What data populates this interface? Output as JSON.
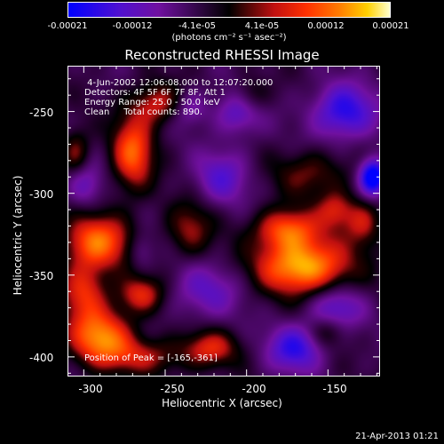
{
  "chart_data": {
    "type": "heatmap",
    "title": "Reconstructed RHESSI Image",
    "xlabel": "Heliocentric X (arcsec)",
    "ylabel": "Heliocentric Y (arcsec)",
    "xlim": [
      -310,
      -118
    ],
    "ylim": [
      -412,
      -222
    ],
    "x_ticks": [
      "-300",
      "-250",
      "-200",
      "-150"
    ],
    "y_ticks": [
      "-250",
      "-300",
      "-350",
      "-400"
    ],
    "colorbar": {
      "range": [
        -0.00021,
        0.00021
      ],
      "ticks": [
        "-0.00021",
        "-0.00012",
        "-4.1e-05",
        "4.1e-05",
        "0.00012",
        "0.00021"
      ],
      "unit_label": "(photons cm⁻² s⁻¹ asec⁻²)"
    },
    "peak_position": [
      -165,
      -361
    ],
    "blobs": [
      {
        "x": -165,
        "y": -345,
        "sx": 20,
        "sy": 12,
        "a": 0.000215
      },
      {
        "x": -175,
        "y": -322,
        "sx": 14,
        "sy": 9,
        "a": 0.00015
      },
      {
        "x": -160,
        "y": -288,
        "sx": 16,
        "sy": 10,
        "a": 8e-05
      },
      {
        "x": -145,
        "y": -310,
        "sx": 8,
        "sy": 8,
        "a": 0.0001
      },
      {
        "x": -128,
        "y": -318,
        "sx": 8,
        "sy": 10,
        "a": 0.0001
      },
      {
        "x": -270,
        "y": -275,
        "sx": 9,
        "sy": 16,
        "a": 0.00016
      },
      {
        "x": -255,
        "y": -245,
        "sx": 11,
        "sy": 9,
        "a": 0.00011
      },
      {
        "x": -292,
        "y": -330,
        "sx": 15,
        "sy": 12,
        "a": 0.00017
      },
      {
        "x": -300,
        "y": -360,
        "sx": 10,
        "sy": 12,
        "a": 0.00012
      },
      {
        "x": -290,
        "y": -388,
        "sx": 14,
        "sy": 12,
        "a": 0.00018
      },
      {
        "x": -265,
        "y": -362,
        "sx": 10,
        "sy": 8,
        "a": 0.00012
      },
      {
        "x": -222,
        "y": -395,
        "sx": 12,
        "sy": 8,
        "a": 0.00011
      },
      {
        "x": -262,
        "y": -400,
        "sx": 18,
        "sy": 8,
        "a": 9e-05
      },
      {
        "x": -198,
        "y": -240,
        "sx": 8,
        "sy": 8,
        "a": 7e-05
      },
      {
        "x": -235,
        "y": -322,
        "sx": 10,
        "sy": 12,
        "a": 9e-05
      },
      {
        "x": -305,
        "y": -275,
        "sx": 6,
        "sy": 10,
        "a": 9e-05
      },
      {
        "x": -150,
        "y": -385,
        "sx": 8,
        "sy": 7,
        "a": 6e-05
      },
      {
        "x": -215,
        "y": -290,
        "sx": 12,
        "sy": 12,
        "a": -9e-05
      },
      {
        "x": -140,
        "y": -250,
        "sx": 14,
        "sy": 12,
        "a": -0.00014
      },
      {
        "x": -122,
        "y": -290,
        "sx": 6,
        "sy": 8,
        "a": -0.00021
      },
      {
        "x": -170,
        "y": -395,
        "sx": 12,
        "sy": 10,
        "a": -0.00013
      },
      {
        "x": -145,
        "y": -370,
        "sx": 12,
        "sy": 10,
        "a": -0.0001
      },
      {
        "x": -300,
        "y": -295,
        "sx": 8,
        "sy": 10,
        "a": -8e-05
      },
      {
        "x": -225,
        "y": -360,
        "sx": 16,
        "sy": 12,
        "a": -8e-05
      },
      {
        "x": -205,
        "y": -250,
        "sx": 10,
        "sy": 10,
        "a": -0.0001
      },
      {
        "x": -235,
        "y": -248,
        "sx": 8,
        "sy": 8,
        "a": -7e-05
      },
      {
        "x": -265,
        "y": -335,
        "sx": 6,
        "sy": 8,
        "a": -6e-05
      }
    ]
  },
  "info_lines": [
    " 4-Jun-2002 12:06:08.000 to 12:07:20.000",
    "Detectors: 4F 5F 6F 7F 8F, Att 1",
    "Energy Range: 25.0 - 50.0 keV",
    "Clean     Total counts: 890."
  ],
  "peak_label": "Position of Peak = [-165,-361]",
  "footer": "21-Apr-2013 01:21"
}
